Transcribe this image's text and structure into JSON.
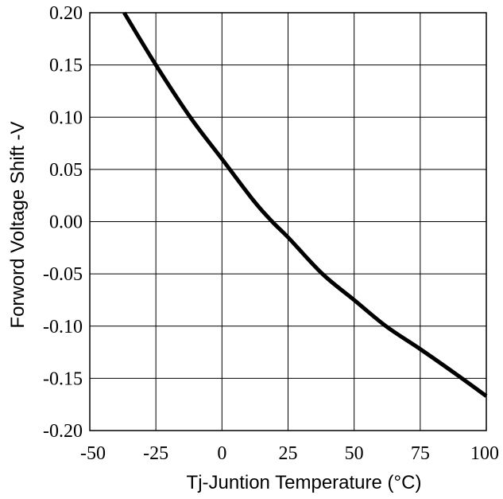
{
  "chart_data": {
    "type": "line",
    "title": "",
    "xlabel": "Tj-Juntion Temperature (°C)",
    "ylabel": "Forword Voltage Shift -V",
    "xlim": [
      -50,
      100
    ],
    "ylim": [
      -0.2,
      0.2
    ],
    "x_ticks": [
      "-50",
      "-25",
      "0",
      "25",
      "50",
      "75",
      "100"
    ],
    "y_ticks": [
      "0.20",
      "0.15",
      "0.10",
      "0.05",
      "0.00",
      "-0.05",
      "-0.10",
      "-0.15",
      "-0.20"
    ],
    "grid": true,
    "series": [
      {
        "color": "#000000",
        "x": [
          -37,
          -25,
          -12,
          0,
          12,
          19,
          25,
          38,
          50,
          62,
          75,
          88,
          100
        ],
        "y": [
          0.2,
          0.15,
          0.1,
          0.06,
          0.02,
          0.0,
          -0.015,
          -0.05,
          -0.075,
          -0.1,
          -0.122,
          -0.145,
          -0.167
        ]
      }
    ]
  }
}
